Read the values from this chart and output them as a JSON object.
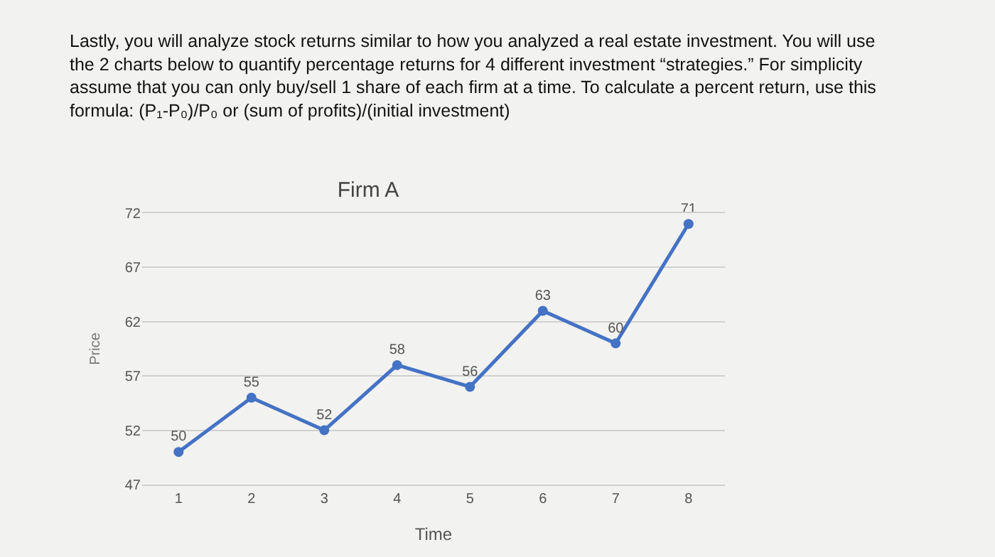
{
  "chart_data": {
    "type": "line",
    "title": "Firm A",
    "subtitle": "Lastly, you will analyze stock returns similar to how you analyzed a real estate investment. You will use the 2 charts below to quantify percentage returns for 4 different investment “strategies.” For simplicity assume that you can only buy/sell 1 share of each firm at a time. To calculate a percent return, use this formula: (P₁-P₀)/P₀ or (sum of profits)/(initial investment)",
    "xlabel": "Time",
    "ylabel": "Price",
    "categories": [
      "1",
      "2",
      "3",
      "4",
      "5",
      "6",
      "7",
      "8"
    ],
    "series": [
      {
        "color": "#4472c4",
        "values": [
          50,
          55,
          52,
          58,
          56,
          63,
          60,
          71
        ]
      }
    ],
    "ylim": [
      47,
      72
    ],
    "yticks": [
      47,
      52,
      57,
      62,
      67,
      72
    ],
    "grid": "y",
    "marker": "circle",
    "line_style": "solid",
    "data_labels": true
  }
}
